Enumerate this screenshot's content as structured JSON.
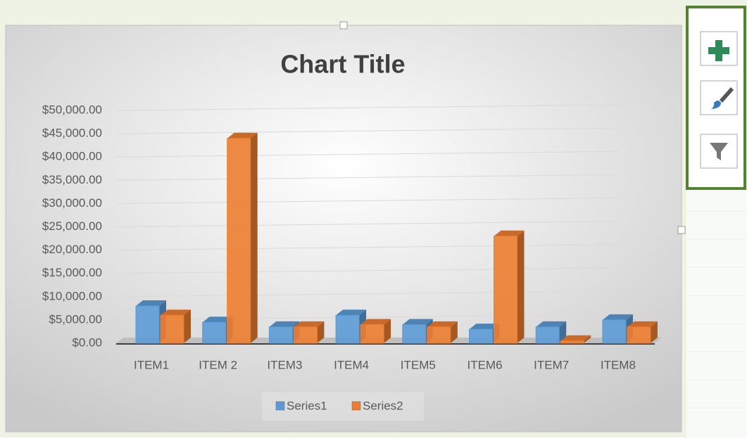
{
  "chart_data": {
    "type": "bar",
    "title": "Chart Title",
    "categories": [
      "ITEM1",
      "ITEM 2",
      "ITEM3",
      "ITEM4",
      "ITEM5",
      "ITEM6",
      "ITEM7",
      "ITEM8"
    ],
    "series": [
      {
        "name": "Series1",
        "color": "#5b9bd5",
        "values": [
          8000,
          4500,
          3500,
          6000,
          4000,
          3000,
          3500,
          5000
        ]
      },
      {
        "name": "Series2",
        "color": "#ed7d31",
        "values": [
          6000,
          44000,
          3500,
          4000,
          3500,
          23000,
          500,
          3500
        ]
      }
    ],
    "ylim": [
      0,
      50000
    ],
    "yticks": [
      {
        "value": 0,
        "label": "$0.00"
      },
      {
        "value": 5000,
        "label": "$5,000.00"
      },
      {
        "value": 10000,
        "label": "$10,000.00"
      },
      {
        "value": 15000,
        "label": "$15,000.00"
      },
      {
        "value": 20000,
        "label": "$20,000.00"
      },
      {
        "value": 25000,
        "label": "$25,000.00"
      },
      {
        "value": 30000,
        "label": "$30,000.00"
      },
      {
        "value": 35000,
        "label": "$35,000.00"
      },
      {
        "value": 40000,
        "label": "$40,000.00"
      },
      {
        "value": 45000,
        "label": "$45,000.00"
      },
      {
        "value": 50000,
        "label": "$50,000.00"
      }
    ],
    "grid": true
  }
}
